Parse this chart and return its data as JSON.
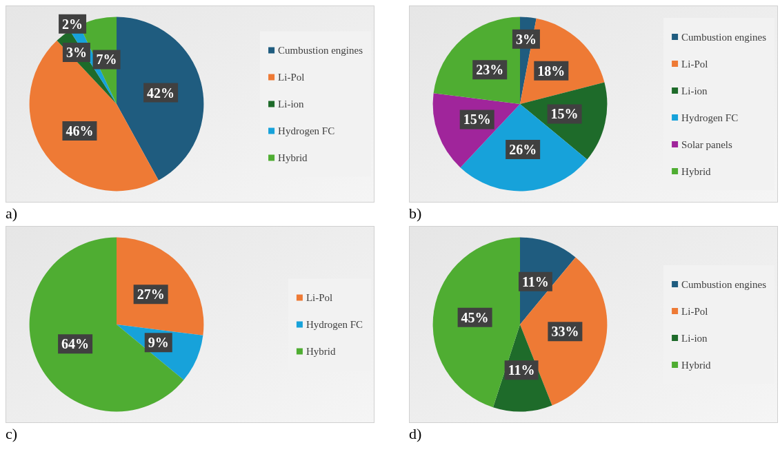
{
  "chart_data": [
    {
      "type": "pie",
      "categories": [
        "Cumbustion engines",
        "Li-Pol",
        "Li-ion",
        "Hydrogen FC",
        "Hybrid"
      ],
      "values": [
        42,
        46,
        3,
        2,
        7
      ],
      "colors": [
        "#1f5c7f",
        "#ee7a35",
        "#1e6b2a",
        "#17a2da",
        "#4fad32"
      ],
      "value_labels": [
        "42%",
        "46%",
        "3%",
        "2%",
        "7%"
      ],
      "legend": "right",
      "annotations": [
        "a)"
      ]
    },
    {
      "type": "pie",
      "categories": [
        "Cumbustion engines",
        "Li-Pol",
        "Li-ion",
        "Hydrogen FC",
        "Solar panels",
        "Hybrid"
      ],
      "values": [
        3,
        18,
        15,
        26,
        15,
        23
      ],
      "colors": [
        "#1f5c7f",
        "#ee7a35",
        "#1e6b2a",
        "#17a2da",
        "#a0259b",
        "#4fad32"
      ],
      "value_labels": [
        "3%",
        "18%",
        "15%",
        "26%",
        "15%",
        "23%"
      ],
      "legend": "right",
      "annotations": [
        "b)"
      ]
    },
    {
      "type": "pie",
      "categories": [
        "Li-Pol",
        "Hydrogen FC",
        "Hybrid"
      ],
      "values": [
        27,
        9,
        64
      ],
      "colors": [
        "#ee7a35",
        "#17a2da",
        "#4fad32"
      ],
      "value_labels": [
        "27%",
        "9%",
        "64%"
      ],
      "legend": "right",
      "annotations": [
        "c)"
      ]
    },
    {
      "type": "pie",
      "categories": [
        "Cumbustion engines",
        "Li-Pol",
        "Li-ion",
        "Hybrid"
      ],
      "values": [
        11,
        33,
        11,
        45
      ],
      "colors": [
        "#1f5c7f",
        "#ee7a35",
        "#1e6b2a",
        "#4fad32"
      ],
      "value_labels": [
        "11%",
        "33%",
        "11%",
        "45%"
      ],
      "legend": "right",
      "annotations": [
        "d)"
      ]
    }
  ]
}
